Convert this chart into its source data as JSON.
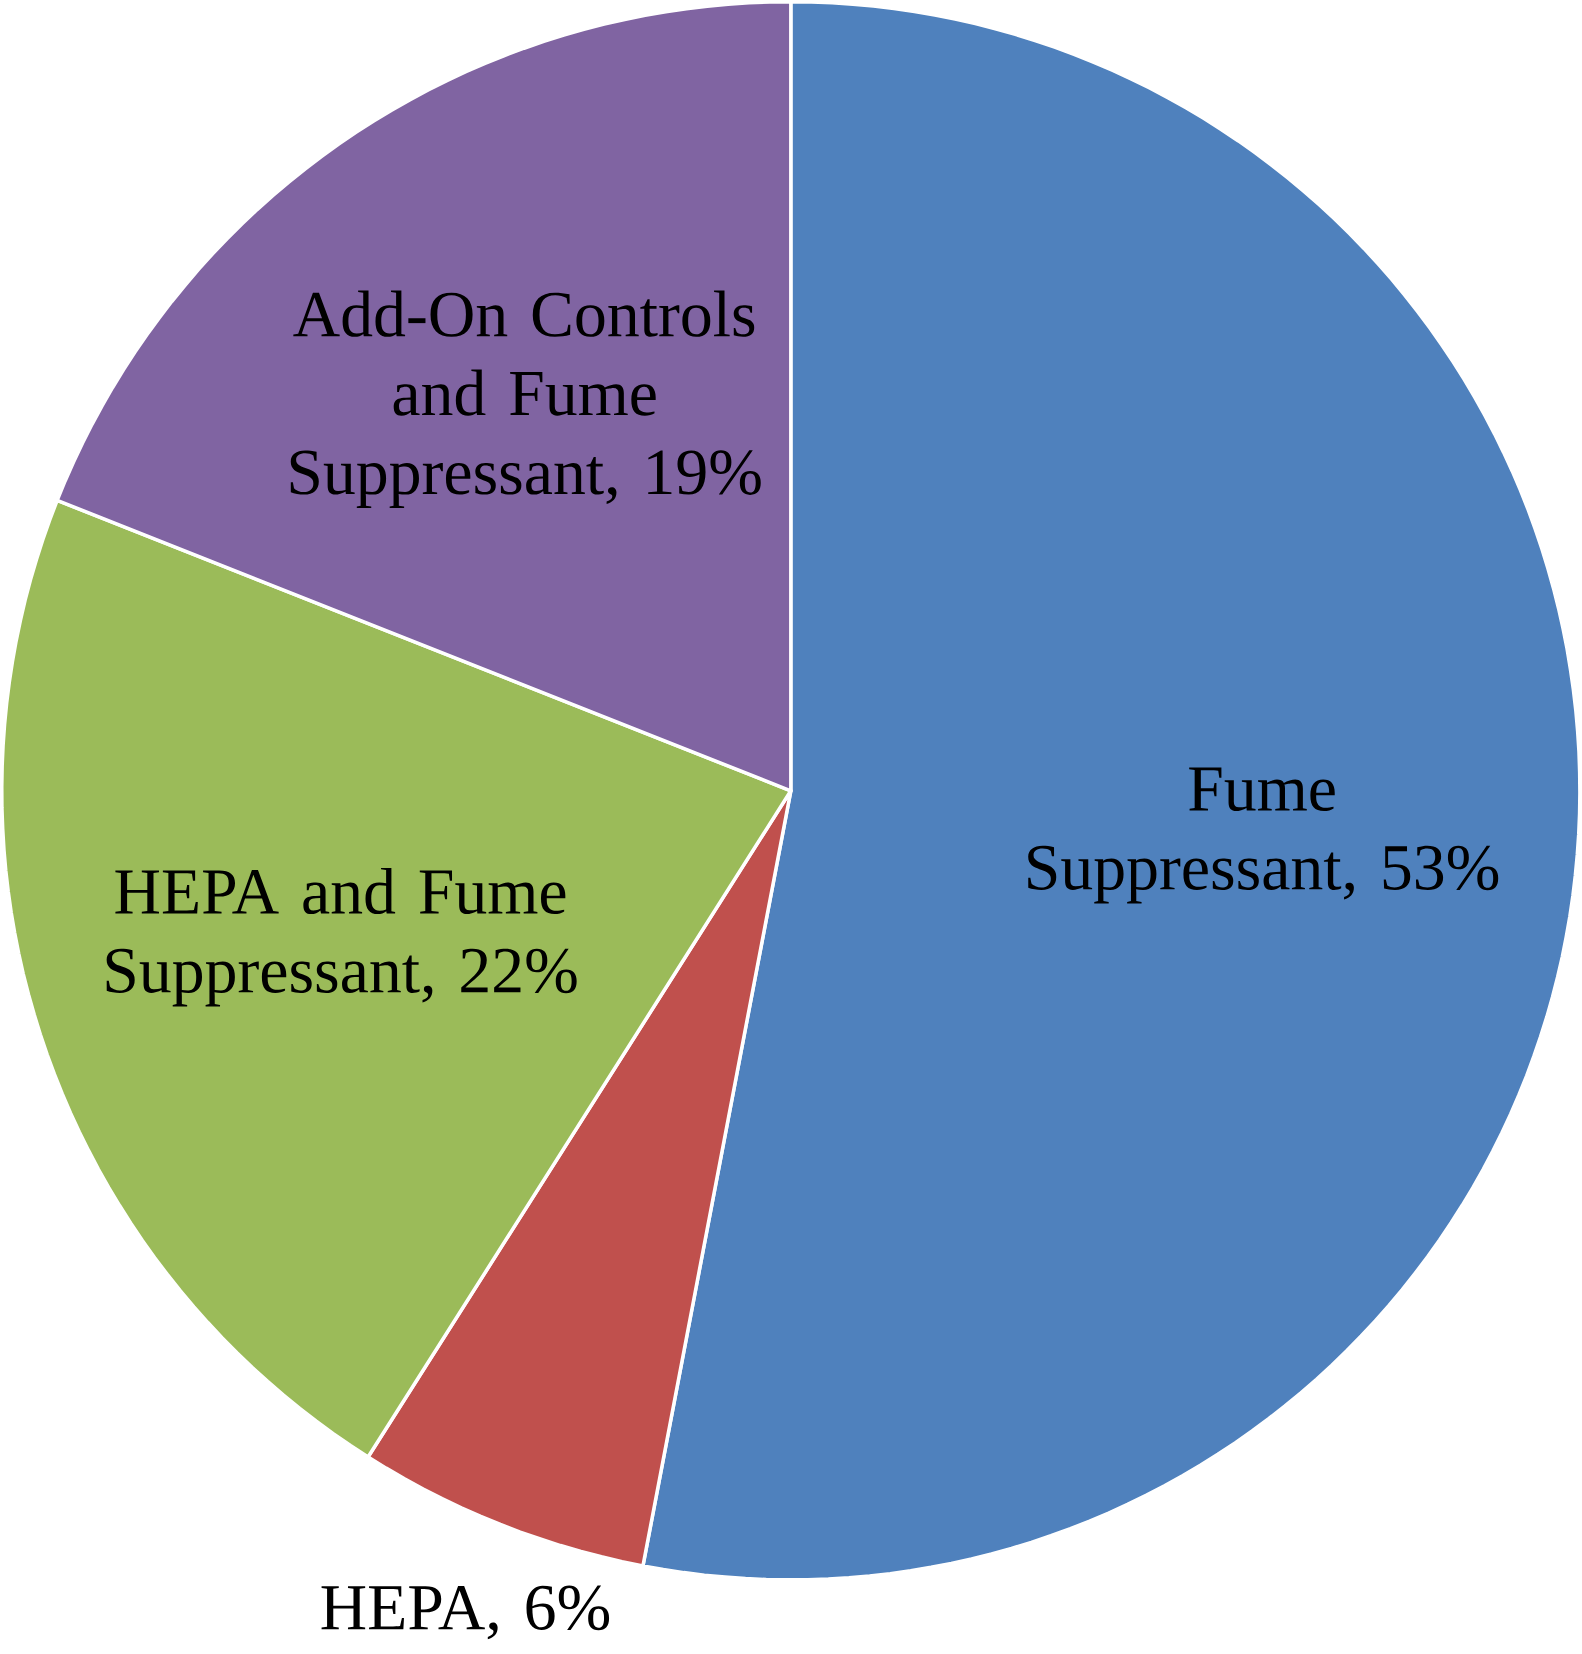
{
  "chart_data": {
    "type": "pie",
    "categories": [
      "Fume Suppressant",
      "HEPA",
      "HEPA and Fume Suppressant",
      "Add-On Controls and Fume Suppressant"
    ],
    "values": [
      53,
      6,
      22,
      19
    ],
    "value_labels": [
      ", 53%",
      ", 6%",
      ", 22%",
      ", 19%"
    ],
    "colors": [
      "#4f81bd",
      "#c0504d",
      "#9bbb59",
      "#8064a2"
    ]
  }
}
